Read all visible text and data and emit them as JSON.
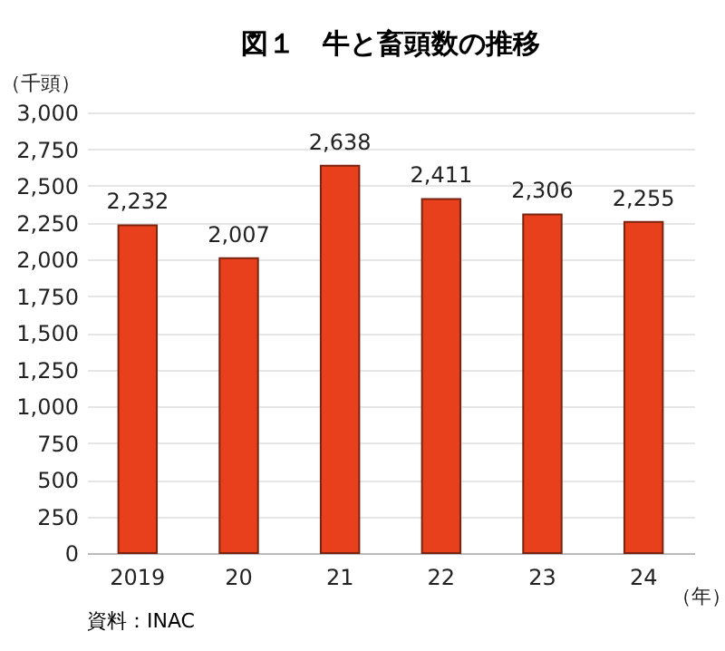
{
  "chart_data": {
    "type": "bar",
    "title": "図１　牛と畜頭数の推移",
    "ylabel": "（千頭）",
    "xlabel": "（年）",
    "annotations": [
      "資料：INAC"
    ],
    "categories": [
      "2019",
      "20",
      "21",
      "22",
      "23",
      "24"
    ],
    "values": [
      2232,
      2007,
      2638,
      2411,
      2306,
      2255
    ],
    "color": "#e8401c",
    "value_labels": [
      "2,232",
      "2,007",
      "2,638",
      "2,411",
      "2,306",
      "2,255"
    ],
    "ylim": [
      0,
      3000
    ],
    "yticks": [
      0,
      250,
      500,
      750,
      {
        "value": 1000,
        "label": "1,000"
      },
      {
        "value": 1250,
        "label": "1,250"
      },
      {
        "value": 1500,
        "label": "1,500"
      },
      {
        "value": 1750,
        "label": "1,750"
      },
      {
        "value": 2000,
        "label": "2,000"
      },
      {
        "value": 2250,
        "label": "2,250"
      },
      {
        "value": 2500,
        "label": "2,500"
      },
      {
        "value": 2750,
        "label": "2,750"
      },
      {
        "value": 3000,
        "label": "3,000"
      }
    ],
    "grid": "y"
  }
}
